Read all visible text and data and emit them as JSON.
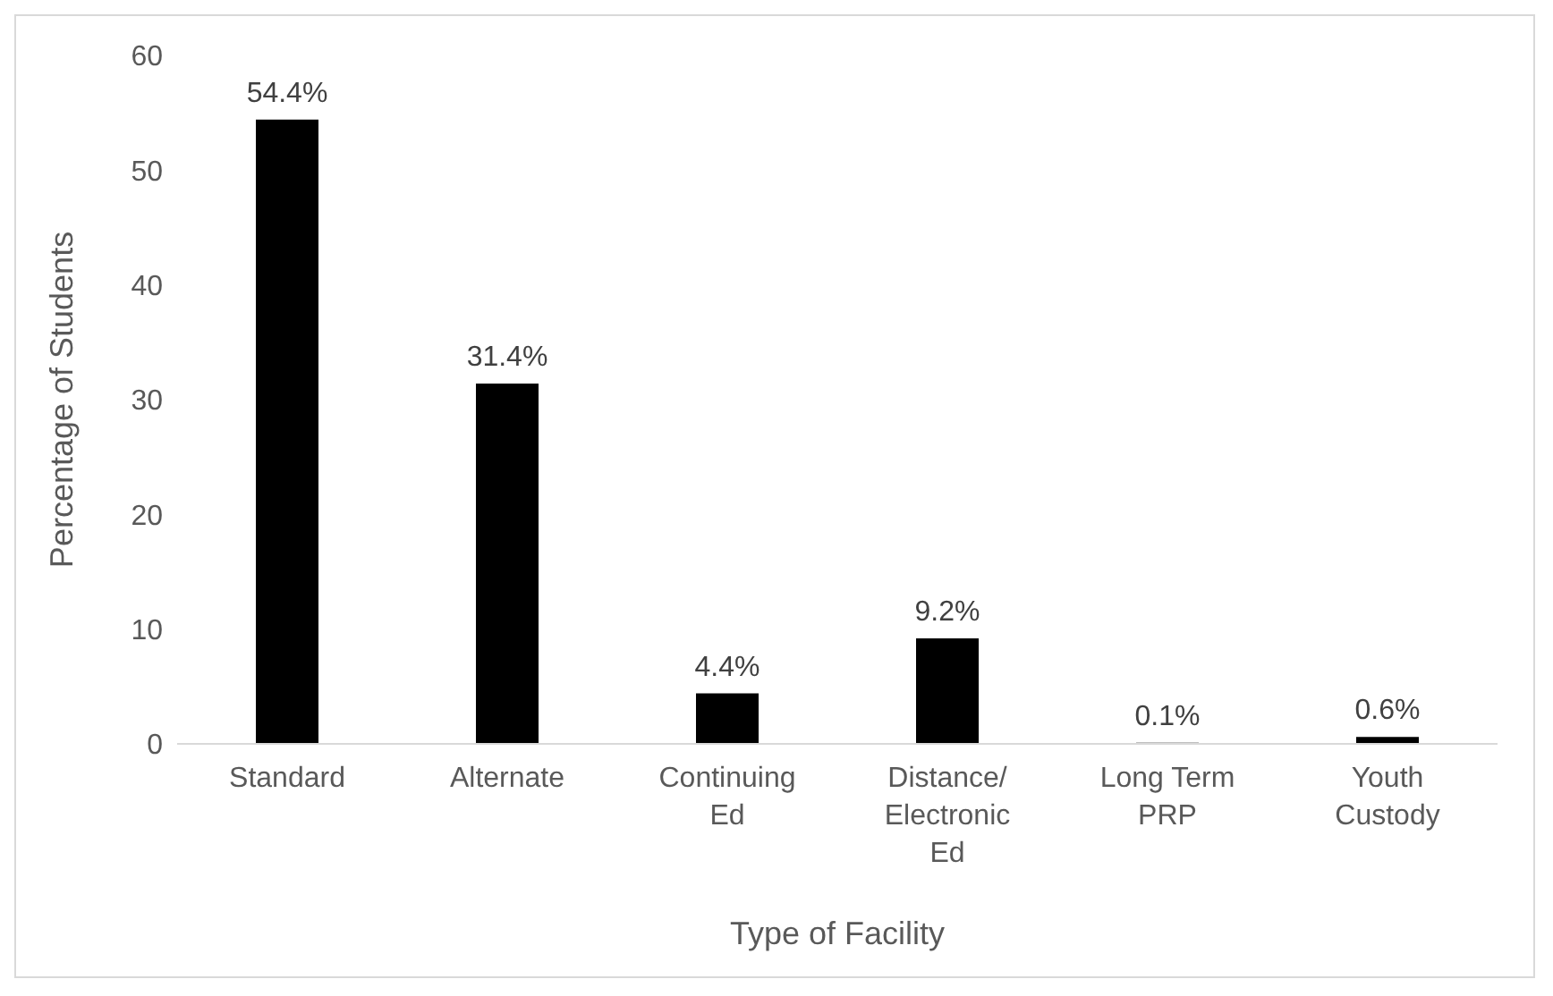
{
  "chart_data": {
    "type": "bar",
    "xlabel": "Type of Facility",
    "ylabel": "Percentage of Students",
    "categories": [
      "Standard",
      "Alternate",
      "Continuing Ed",
      "Distance/Electronic Ed",
      "Long Term PRP",
      "Youth Custody"
    ],
    "values": [
      54.4,
      31.4,
      4.4,
      9.2,
      0.1,
      0.6
    ],
    "value_labels": [
      "54.4%",
      "31.4%",
      "4.4%",
      "9.2%",
      "0.1%",
      "0.6%"
    ],
    "color": "#000000",
    "ylim": [
      0,
      60
    ],
    "yticks": [
      0,
      10,
      20,
      30,
      40,
      50,
      60
    ],
    "grid": false
  }
}
